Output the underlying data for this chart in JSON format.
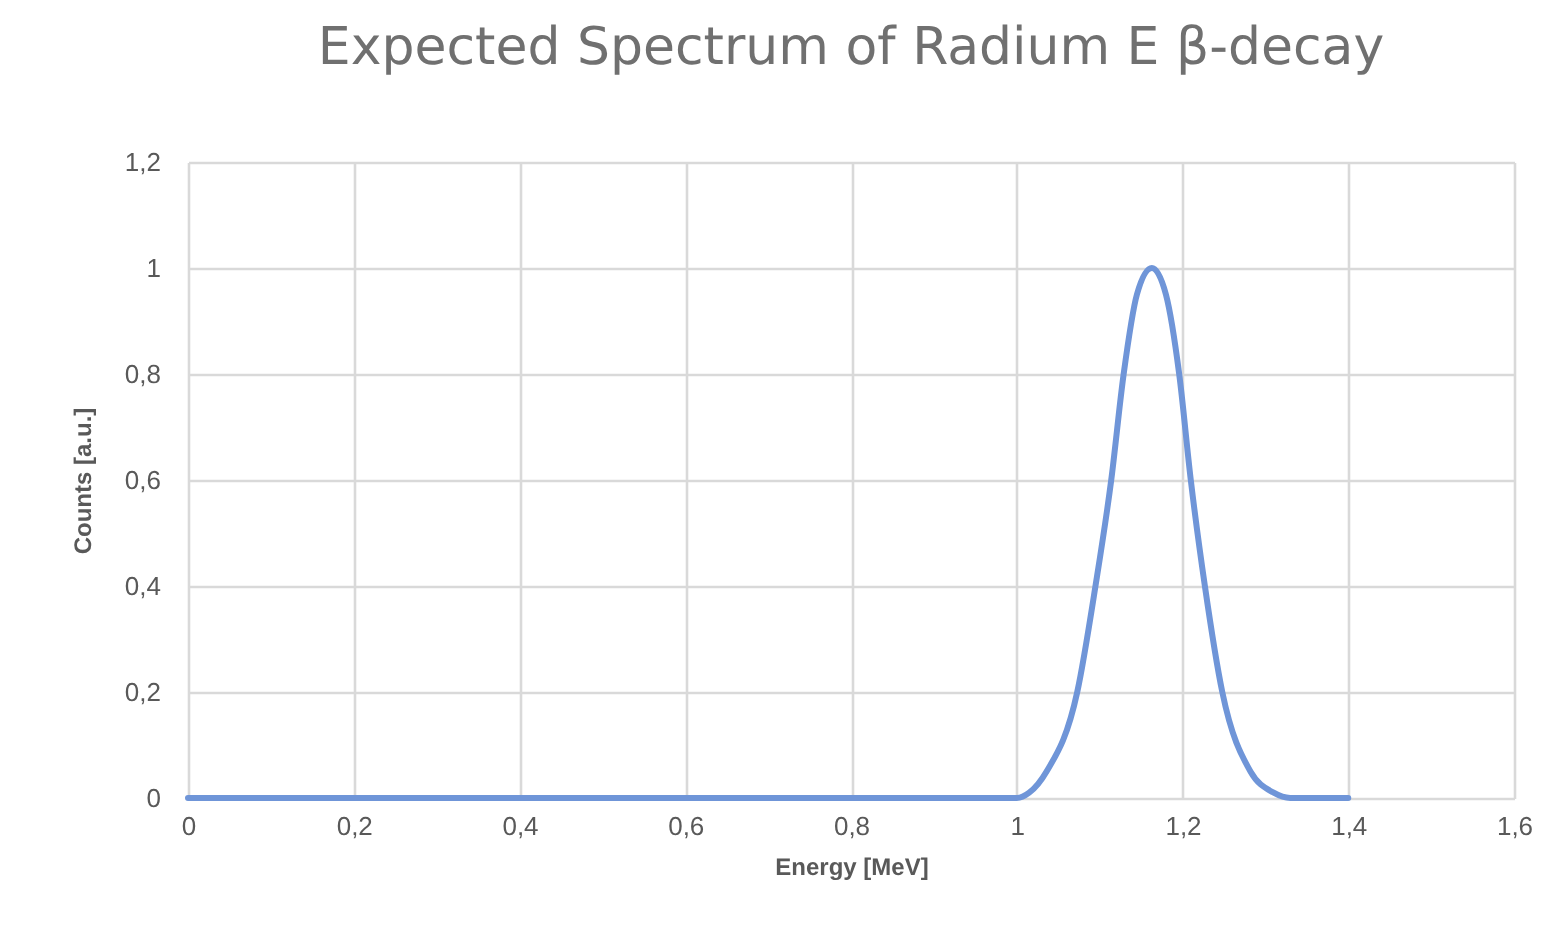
{
  "chart_data": {
    "type": "line",
    "title": "Expected Spectrum of Radium E β-decay",
    "xlabel": "Energy [MeV]",
    "ylabel": "Counts [a.u.]",
    "x": [
      0,
      1.0,
      1.015,
      1.036,
      1.073,
      1.095,
      1.114,
      1.129,
      1.145,
      1.163,
      1.18,
      1.196,
      1.21,
      1.227,
      1.248,
      1.282,
      1.31,
      1.33,
      1.4
    ],
    "series": [
      {
        "color": "#6f95d8",
        "values": [
          0,
          0,
          0.01,
          0.05,
          0.2,
          0.4,
          0.6,
          0.8,
          0.95,
          1,
          0.95,
          0.8,
          0.6,
          0.4,
          0.2,
          0.05,
          0.01,
          0,
          0
        ]
      }
    ],
    "xlim": [
      0,
      1.6
    ],
    "ylim": [
      0,
      1.2
    ],
    "xticks": [
      0,
      {
        "value": 0.2,
        "label": "0,2"
      },
      {
        "value": 0.4,
        "label": "0,4"
      },
      {
        "value": 0.6,
        "label": "0,6"
      },
      {
        "value": 0.8,
        "label": "0,8"
      },
      1,
      {
        "value": 1.2,
        "label": "1,2"
      },
      {
        "value": 1.4,
        "label": "1,4"
      },
      {
        "value": 1.6,
        "label": "1,6"
      }
    ],
    "yticks": [
      0,
      {
        "value": 0.2,
        "label": "0,2"
      },
      {
        "value": 0.4,
        "label": "0,4"
      },
      {
        "value": 0.6,
        "label": "0,6"
      },
      {
        "value": 0.8,
        "label": "0,8"
      },
      1,
      {
        "value": 1.2,
        "label": "1,2"
      }
    ],
    "grid": true,
    "legend": false,
    "marker": "none",
    "line_style": "solid"
  }
}
